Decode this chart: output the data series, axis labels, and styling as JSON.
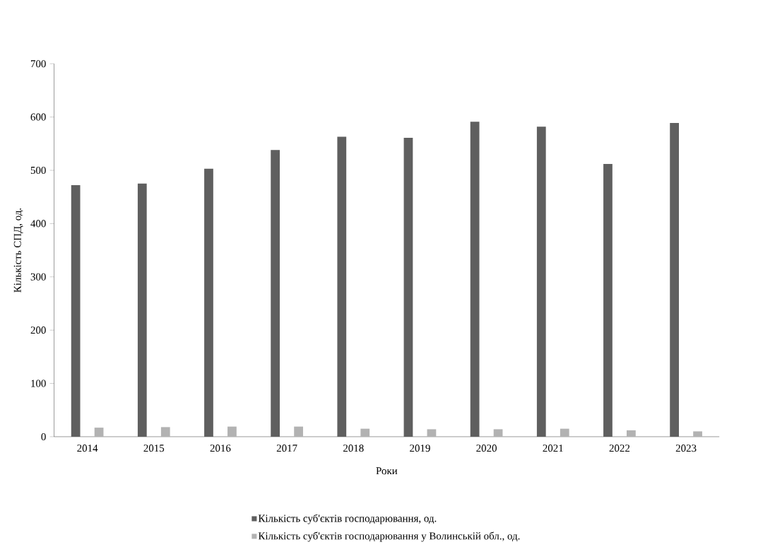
{
  "chart_data": {
    "type": "bar",
    "xlabel": "Роки",
    "ylabel": "Кількість СПД, од.",
    "categories": [
      "2014",
      "2015",
      "2016",
      "2017",
      "2018",
      "2019",
      "2020",
      "2021",
      "2022",
      "2023"
    ],
    "series": [
      {
        "name": "Кількість суб'єктів господарювання, од.",
        "color": "#5f5f5f",
        "values": [
          472,
          475,
          503,
          538,
          563,
          561,
          591,
          582,
          512,
          589
        ]
      },
      {
        "name": "Кількість суб'єктів господарювання у Волинській обл., од.",
        "color": "#b2b2b2",
        "values": [
          17,
          18,
          19,
          19,
          15,
          14,
          14,
          15,
          12,
          10
        ]
      }
    ],
    "ylim": [
      0,
      700
    ],
    "yticks": [
      0,
      100,
      200,
      300,
      400,
      500,
      600,
      700
    ],
    "grid": false,
    "legend": "bottom"
  }
}
